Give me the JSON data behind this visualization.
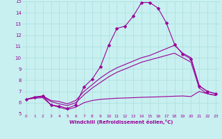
{
  "xlabel": "Windchill (Refroidissement éolien,°C)",
  "xlim": [
    -0.5,
    23.5
  ],
  "ylim": [
    5,
    15
  ],
  "yticks": [
    5,
    6,
    7,
    8,
    9,
    10,
    11,
    12,
    13,
    14,
    15
  ],
  "xticks": [
    0,
    1,
    2,
    3,
    4,
    5,
    6,
    7,
    8,
    9,
    10,
    11,
    12,
    13,
    14,
    15,
    16,
    17,
    18,
    19,
    20,
    21,
    22,
    23
  ],
  "background_color": "#c8f0f0",
  "line_color": "#990099",
  "grid_color": "#aadddd",
  "series": [
    {
      "x": [
        0,
        1,
        2,
        3,
        4,
        5,
        6,
        7,
        8,
        9,
        10,
        11,
        12,
        13,
        14,
        15,
        16,
        17,
        18,
        19,
        20,
        21,
        22,
        23
      ],
      "y": [
        6.3,
        6.5,
        6.6,
        5.8,
        5.7,
        5.5,
        5.8,
        7.4,
        8.1,
        9.2,
        11.1,
        12.6,
        12.8,
        13.7,
        14.9,
        14.9,
        14.4,
        13.1,
        11.2,
        10.3,
        9.9,
        7.5,
        7.0,
        6.8
      ],
      "marker": "D",
      "markersize": 2.5,
      "linewidth": 0.8
    },
    {
      "x": [
        0,
        1,
        2,
        3,
        4,
        5,
        6,
        7,
        8,
        9,
        10,
        11,
        12,
        13,
        14,
        15,
        16,
        17,
        18,
        19,
        20,
        21,
        22,
        23
      ],
      "y": [
        6.3,
        6.5,
        6.6,
        6.2,
        6.1,
        5.9,
        6.2,
        7.0,
        7.6,
        8.2,
        8.7,
        9.1,
        9.4,
        9.7,
        10.0,
        10.2,
        10.5,
        10.8,
        11.1,
        10.4,
        10.0,
        7.5,
        7.0,
        6.8
      ],
      "marker": "None",
      "markersize": 0,
      "linewidth": 0.8
    },
    {
      "x": [
        0,
        1,
        2,
        3,
        4,
        5,
        6,
        7,
        8,
        9,
        10,
        11,
        12,
        13,
        14,
        15,
        16,
        17,
        18,
        19,
        20,
        21,
        22,
        23
      ],
      "y": [
        6.3,
        6.45,
        6.55,
        6.1,
        5.9,
        5.75,
        6.0,
        6.7,
        7.3,
        7.8,
        8.3,
        8.7,
        9.0,
        9.3,
        9.6,
        9.8,
        10.0,
        10.2,
        10.4,
        10.0,
        9.6,
        7.3,
        6.8,
        6.65
      ],
      "marker": "None",
      "markersize": 0,
      "linewidth": 0.8
    },
    {
      "x": [
        0,
        1,
        2,
        3,
        4,
        5,
        6,
        7,
        8,
        9,
        10,
        11,
        12,
        13,
        14,
        15,
        16,
        17,
        18,
        19,
        20,
        21,
        22,
        23
      ],
      "y": [
        6.3,
        6.4,
        6.45,
        5.8,
        5.6,
        5.4,
        5.6,
        6.0,
        6.2,
        6.3,
        6.35,
        6.4,
        6.42,
        6.45,
        6.48,
        6.5,
        6.52,
        6.55,
        6.58,
        6.6,
        6.55,
        7.0,
        6.8,
        6.65
      ],
      "marker": "None",
      "markersize": 0,
      "linewidth": 0.8
    }
  ]
}
